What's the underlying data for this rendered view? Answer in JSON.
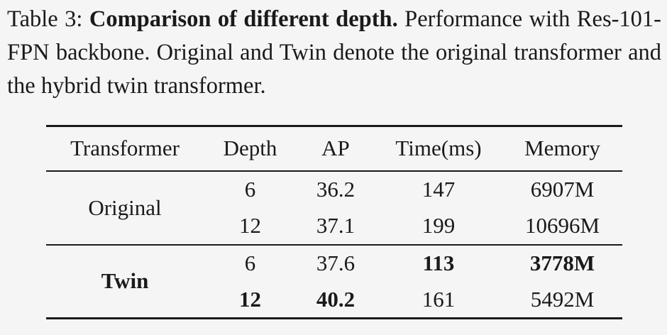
{
  "caption": {
    "label": "Table 3:",
    "title": "Comparison of different depth.",
    "text": "Performance with Res-101-FPN backbone. Original and Twin denote the original transformer and the hybrid twin transformer."
  },
  "table": {
    "header": [
      "Transformer",
      "Depth",
      "AP",
      "Time(ms)",
      "Memory"
    ],
    "groups": [
      {
        "name": "Original",
        "rows": [
          [
            "6",
            "36.2",
            "147",
            "6907M"
          ],
          [
            "12",
            "37.1",
            "199",
            "10696M"
          ]
        ]
      },
      {
        "name": "Twin",
        "rows": [
          [
            "6",
            "37.6",
            "113",
            "3778M"
          ],
          [
            "12",
            "40.2",
            "161",
            "5492M"
          ]
        ]
      }
    ]
  }
}
